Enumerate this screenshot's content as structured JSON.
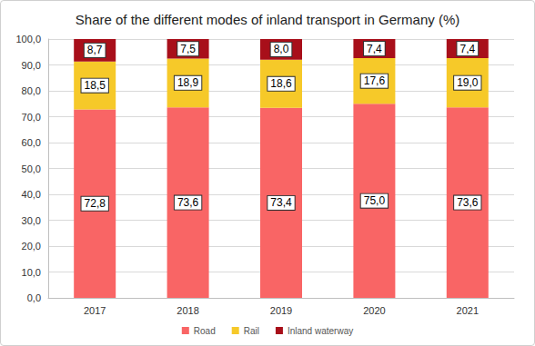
{
  "chart_data": {
    "type": "bar",
    "title": "Share of the different modes of inland transport in Germany (%)",
    "categories": [
      "2017",
      "2018",
      "2019",
      "2020",
      "2021"
    ],
    "stacked": true,
    "data_labels": true,
    "grid": true,
    "legend": "bottom",
    "ylim": [
      0,
      100
    ],
    "yticks": [
      {
        "value": 0,
        "label": "0,0"
      },
      {
        "value": 10,
        "label": "10,0"
      },
      {
        "value": 20,
        "label": "20,0"
      },
      {
        "value": 30,
        "label": "30,0"
      },
      {
        "value": 40,
        "label": "40,0"
      },
      {
        "value": 50,
        "label": "50,0"
      },
      {
        "value": 60,
        "label": "60,0"
      },
      {
        "value": 70,
        "label": "70,0"
      },
      {
        "value": 80,
        "label": "80,0"
      },
      {
        "value": 90,
        "label": "90,0"
      },
      {
        "value": 100,
        "label": "100,0"
      }
    ],
    "series": [
      {
        "name": "Road",
        "color": "#f96565",
        "values": [
          72.8,
          73.6,
          73.4,
          75.0,
          73.6
        ],
        "value_labels": [
          "72,8",
          "73,6",
          "73,4",
          "75,0",
          "73,6"
        ]
      },
      {
        "name": "Rail",
        "color": "#f6c929",
        "values": [
          18.5,
          18.9,
          18.6,
          17.6,
          19.0
        ],
        "value_labels": [
          "18,5",
          "18,9",
          "18,6",
          "17,6",
          "19,0"
        ]
      },
      {
        "name": "Inland waterway",
        "color": "#a80f1a",
        "values": [
          8.7,
          7.5,
          8.0,
          7.4,
          7.4
        ],
        "value_labels": [
          "8,7",
          "7,5",
          "8,0",
          "7,4",
          "7,4"
        ]
      }
    ]
  }
}
